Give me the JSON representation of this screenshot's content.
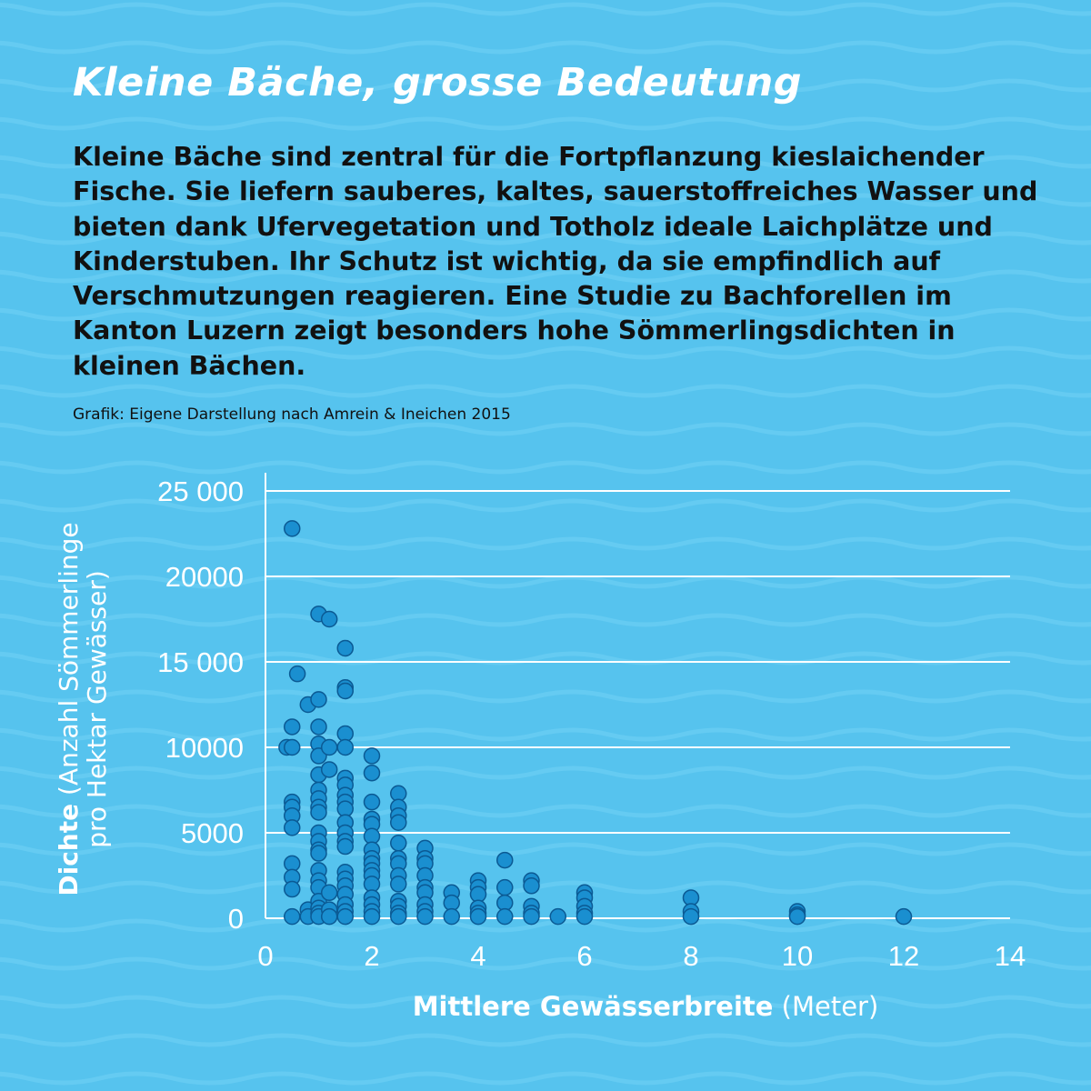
{
  "title": "Kleine Bäche, grosse Bedeutung",
  "intro": "Kleine Bäche sind zentral für die Fortpflanzung kieslaichender Fische. Sie liefern sauberes, kaltes, sauerstoffreiches Wasser und bieten dank Ufervegetation und Totholz ideale Laichplätze und Kinderstuben. Ihr Schutz ist wichtig, da sie empfindlich auf Verschmutzungen reagieren. Eine Studie zu Bachforellen im Kanton Luzern zeigt besonders hohe Sömmerlingsdichten in kleinen Bächen.",
  "source": "Grafik: Eigene Darstellung nach Amrein & Ineichen 2015",
  "colors": {
    "background": "#56c3ee",
    "point_fill": "#1a8fd0",
    "point_stroke": "#0b5a94",
    "grid": "#ffffff"
  },
  "chart_data": {
    "type": "scatter",
    "xlabel_bold": "Mittlere Gewässerbreite",
    "xlabel_unit": "(Meter)",
    "ylabel_bold": "Dichte",
    "ylabel_line1": "(Anzahl Sömmerlinge",
    "ylabel_line2": "pro Hektar Gewässer)",
    "xlim": [
      0,
      14
    ],
    "ylim": [
      0,
      25000
    ],
    "xticks": [
      0,
      2,
      4,
      6,
      8,
      10,
      12,
      14
    ],
    "xtick_labels": [
      "0",
      "2",
      "4",
      "6",
      "8",
      "10",
      "12",
      "14"
    ],
    "yticks": [
      0,
      5000,
      10000,
      15000,
      20000,
      25000
    ],
    "ytick_labels": [
      "0",
      "5000",
      "10000",
      "15 000",
      "20000",
      "25 000"
    ],
    "grid": "horizontal",
    "points": [
      [
        0.5,
        22800
      ],
      [
        0.5,
        11200
      ],
      [
        0.4,
        10000
      ],
      [
        0.5,
        10000
      ],
      [
        0.5,
        6800
      ],
      [
        0.5,
        6500
      ],
      [
        0.5,
        6000
      ],
      [
        0.5,
        5300
      ],
      [
        0.5,
        3200
      ],
      [
        0.5,
        2400
      ],
      [
        0.5,
        1700
      ],
      [
        0.5,
        100
      ],
      [
        0.6,
        14300
      ],
      [
        0.8,
        12500
      ],
      [
        0.8,
        500
      ],
      [
        0.8,
        100
      ],
      [
        1,
        17800
      ],
      [
        1,
        12800
      ],
      [
        1,
        11200
      ],
      [
        1,
        10200
      ],
      [
        1,
        9500
      ],
      [
        1,
        8400
      ],
      [
        1,
        7500
      ],
      [
        1,
        7000
      ],
      [
        1,
        6500
      ],
      [
        1,
        6200
      ],
      [
        1,
        5000
      ],
      [
        1,
        4500
      ],
      [
        1,
        4000
      ],
      [
        1,
        3800
      ],
      [
        1,
        2800
      ],
      [
        1,
        2200
      ],
      [
        1,
        1800
      ],
      [
        1,
        1000
      ],
      [
        1,
        600
      ],
      [
        1,
        300
      ],
      [
        1,
        100
      ],
      [
        1.2,
        17500
      ],
      [
        1.2,
        10000
      ],
      [
        1.2,
        8700
      ],
      [
        1.2,
        1500
      ],
      [
        1.2,
        500
      ],
      [
        1.2,
        100
      ],
      [
        1.5,
        15800
      ],
      [
        1.5,
        13500
      ],
      [
        1.5,
        13300
      ],
      [
        1.5,
        10800
      ],
      [
        1.5,
        10000
      ],
      [
        1.5,
        8200
      ],
      [
        1.5,
        7800
      ],
      [
        1.5,
        7200
      ],
      [
        1.5,
        6800
      ],
      [
        1.5,
        6400
      ],
      [
        1.5,
        5600
      ],
      [
        1.5,
        5000
      ],
      [
        1.5,
        4500
      ],
      [
        1.5,
        4200
      ],
      [
        1.5,
        2700
      ],
      [
        1.5,
        2300
      ],
      [
        1.5,
        1900
      ],
      [
        1.5,
        1400
      ],
      [
        1.5,
        800
      ],
      [
        1.5,
        400
      ],
      [
        1.5,
        100
      ],
      [
        2,
        9500
      ],
      [
        2,
        8500
      ],
      [
        2,
        6800
      ],
      [
        2,
        5800
      ],
      [
        2,
        5500
      ],
      [
        2,
        4800
      ],
      [
        2,
        4000
      ],
      [
        2,
        3500
      ],
      [
        2,
        3200
      ],
      [
        2,
        2800
      ],
      [
        2,
        2500
      ],
      [
        2,
        2000
      ],
      [
        2,
        1200
      ],
      [
        2,
        800
      ],
      [
        2,
        400
      ],
      [
        2,
        100
      ],
      [
        2.5,
        7300
      ],
      [
        2.5,
        6500
      ],
      [
        2.5,
        6000
      ],
      [
        2.5,
        5600
      ],
      [
        2.5,
        4400
      ],
      [
        2.5,
        3500
      ],
      [
        2.5,
        3200
      ],
      [
        2.5,
        2500
      ],
      [
        2.5,
        2000
      ],
      [
        2.5,
        1000
      ],
      [
        2.5,
        700
      ],
      [
        2.5,
        300
      ],
      [
        2.5,
        100
      ],
      [
        3,
        4100
      ],
      [
        3,
        3500
      ],
      [
        3,
        3200
      ],
      [
        3,
        2500
      ],
      [
        3,
        1800
      ],
      [
        3,
        1500
      ],
      [
        3,
        800
      ],
      [
        3,
        400
      ],
      [
        3,
        100
      ],
      [
        3.5,
        1500
      ],
      [
        3.5,
        900
      ],
      [
        3.5,
        100
      ],
      [
        4,
        2200
      ],
      [
        4,
        1800
      ],
      [
        4,
        1400
      ],
      [
        4,
        600
      ],
      [
        4,
        300
      ],
      [
        4,
        100
      ],
      [
        4.5,
        3400
      ],
      [
        4.5,
        1800
      ],
      [
        4.5,
        900
      ],
      [
        4.5,
        100
      ],
      [
        5,
        2200
      ],
      [
        5,
        1900
      ],
      [
        5,
        700
      ],
      [
        5,
        300
      ],
      [
        5,
        100
      ],
      [
        5.5,
        100
      ],
      [
        6,
        1500
      ],
      [
        6,
        1200
      ],
      [
        6,
        700
      ],
      [
        6,
        300
      ],
      [
        6,
        100
      ],
      [
        8,
        1200
      ],
      [
        8,
        400
      ],
      [
        8,
        100
      ],
      [
        10,
        400
      ],
      [
        10,
        200
      ],
      [
        10,
        100
      ],
      [
        12,
        100
      ]
    ]
  }
}
